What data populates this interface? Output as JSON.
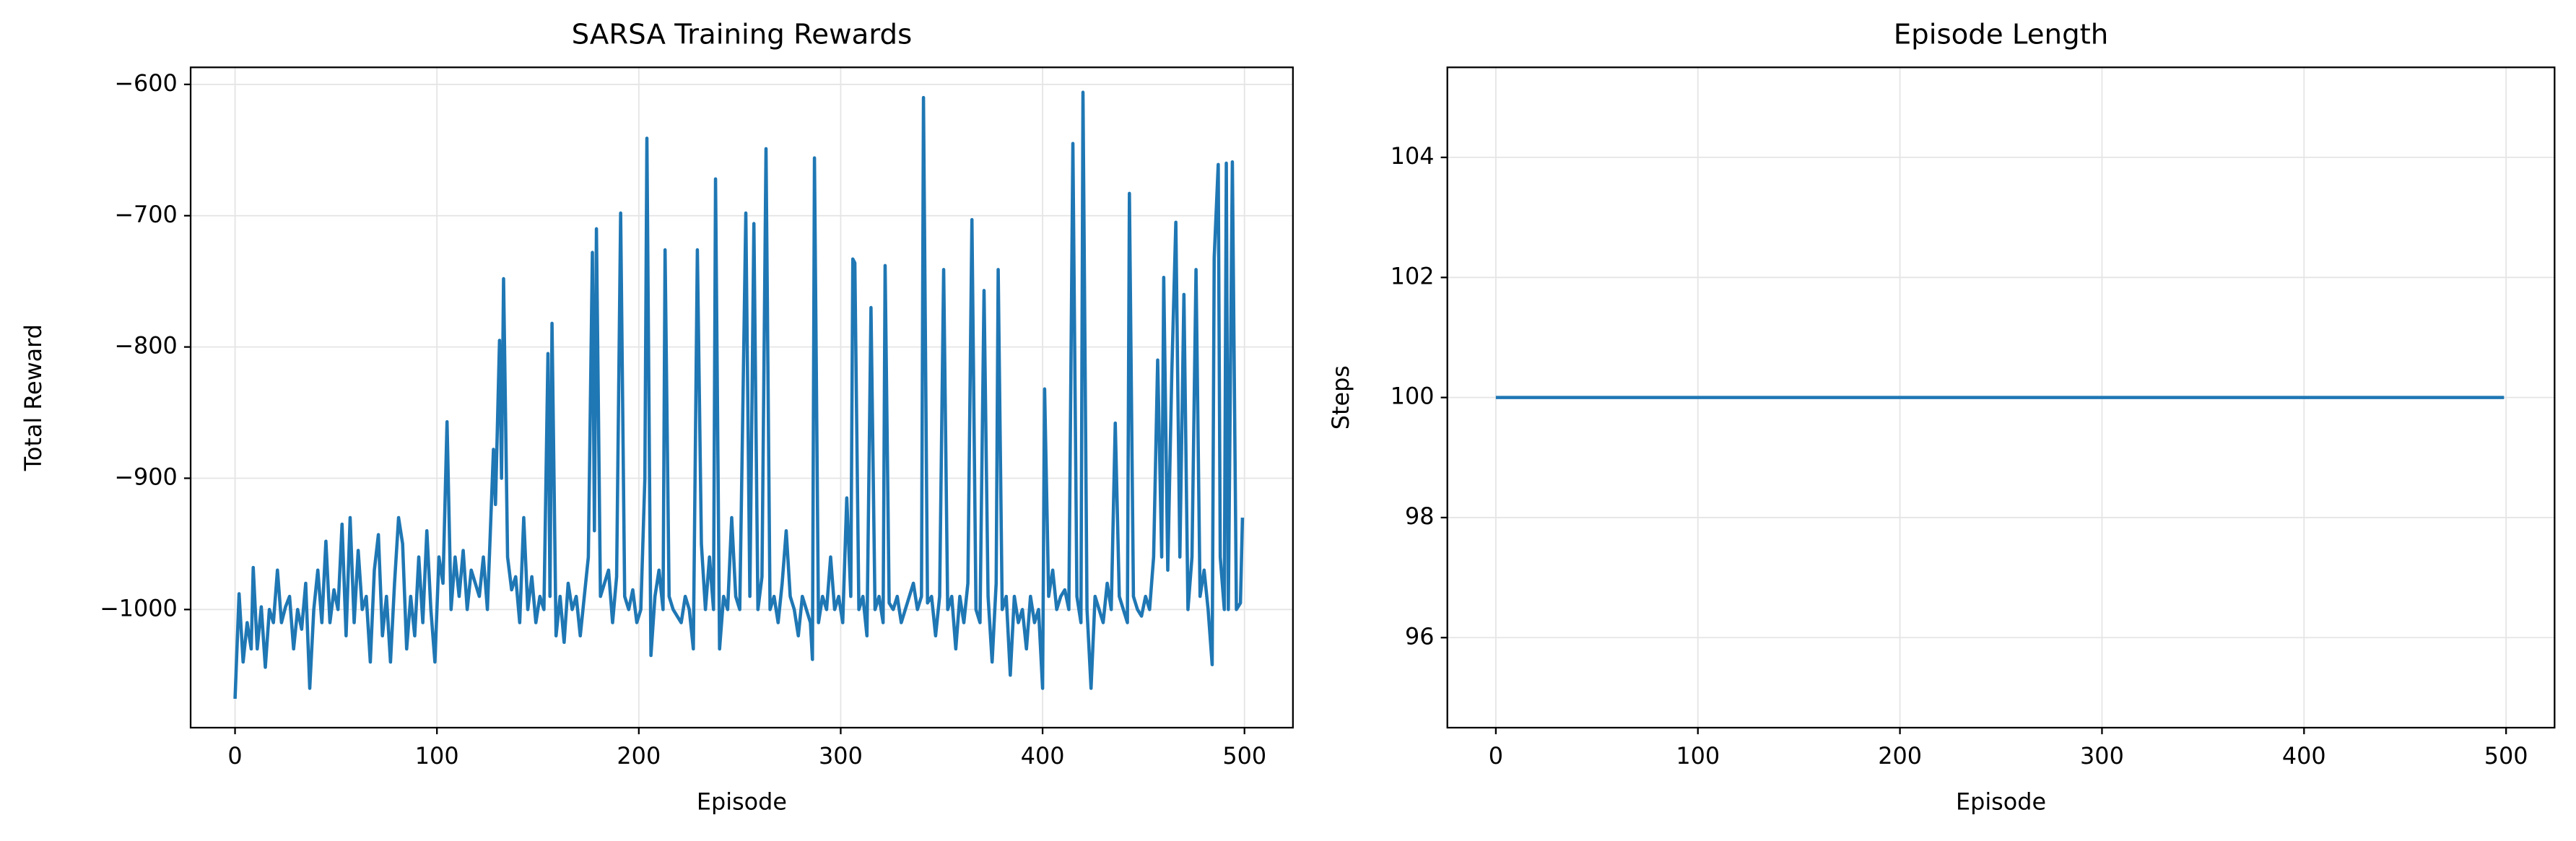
{
  "chart_data": [
    {
      "type": "line",
      "title": "SARSA Training Rewards",
      "xlabel": "Episode",
      "ylabel": "Total Reward",
      "grid": true,
      "xlim": [
        -22,
        524
      ],
      "ylim": [
        -1090,
        -587
      ],
      "xticks": [
        0,
        100,
        200,
        300,
        400,
        500
      ],
      "yticks": [
        {
          "value": -1000,
          "label": "−1000"
        },
        {
          "value": -900,
          "label": "−900"
        },
        {
          "value": -800,
          "label": "−800"
        },
        {
          "value": -700,
          "label": "−700"
        },
        {
          "value": -600,
          "label": "−600"
        }
      ],
      "series": [
        {
          "color": "#1f77b4",
          "x": [
            0,
            2,
            4,
            6,
            8,
            9,
            11,
            13,
            15,
            17,
            19,
            21,
            23,
            25,
            27,
            29,
            31,
            33,
            35,
            37,
            39,
            41,
            43,
            45,
            47,
            49,
            51,
            53,
            55,
            57,
            59,
            61,
            63,
            65,
            67,
            69,
            71,
            73,
            75,
            77,
            79,
            81,
            83,
            85,
            87,
            89,
            91,
            93,
            95,
            97,
            99,
            101,
            103,
            105,
            107,
            109,
            111,
            113,
            115,
            117,
            119,
            121,
            123,
            125,
            128,
            129,
            131,
            132,
            133,
            135,
            137,
            139,
            141,
            143,
            145,
            147,
            149,
            151,
            153,
            155,
            156,
            157,
            159,
            161,
            163,
            165,
            167,
            169,
            171,
            173,
            175,
            177,
            178,
            179,
            181,
            183,
            185,
            187,
            189,
            191,
            193,
            195,
            197,
            199,
            201,
            203,
            204,
            206,
            208,
            210,
            212,
            213,
            215,
            217,
            219,
            221,
            223,
            225,
            227,
            229,
            231,
            233,
            235,
            237,
            238,
            240,
            242,
            244,
            246,
            248,
            250,
            253,
            255,
            257,
            259,
            261,
            263,
            265,
            267,
            269,
            271,
            273,
            275,
            277,
            279,
            281,
            283,
            285,
            286,
            287,
            289,
            291,
            293,
            295,
            297,
            299,
            301,
            303,
            305,
            306,
            307,
            309,
            311,
            313,
            315,
            317,
            319,
            321,
            322,
            324,
            326,
            328,
            330,
            332,
            334,
            336,
            338,
            340,
            341,
            343,
            345,
            347,
            349,
            351,
            353,
            355,
            357,
            359,
            361,
            363,
            365,
            367,
            369,
            371,
            373,
            375,
            377,
            378,
            380,
            382,
            384,
            386,
            388,
            390,
            392,
            394,
            396,
            398,
            400,
            401,
            403,
            405,
            407,
            409,
            411,
            413,
            415,
            417,
            419,
            420,
            422,
            424,
            426,
            428,
            430,
            432,
            434,
            436,
            438,
            440,
            442,
            443,
            445,
            447,
            449,
            451,
            453,
            455,
            457,
            459,
            460,
            462,
            464,
            466,
            468,
            470,
            472,
            474,
            476,
            478,
            480,
            482,
            484,
            485,
            487,
            488,
            490,
            491,
            492,
            494,
            496,
            498,
            499
          ],
          "values": [
            -1068,
            -988,
            -1040,
            -1010,
            -1030,
            -968,
            -1030,
            -998,
            -1044,
            -1000,
            -1010,
            -970,
            -1010,
            -998,
            -990,
            -1030,
            -1000,
            -1015,
            -980,
            -1060,
            -1000,
            -970,
            -1010,
            -948,
            -1010,
            -985,
            -1000,
            -935,
            -1020,
            -930,
            -1010,
            -955,
            -1000,
            -990,
            -1040,
            -970,
            -943,
            -1020,
            -990,
            -1040,
            -980,
            -930,
            -950,
            -1030,
            -990,
            -1020,
            -960,
            -1010,
            -940,
            -1000,
            -1040,
            -960,
            -980,
            -857,
            -1000,
            -960,
            -990,
            -955,
            -1000,
            -970,
            -980,
            -990,
            -960,
            -1000,
            -878,
            -920,
            -795,
            -900,
            -748,
            -960,
            -985,
            -975,
            -1010,
            -930,
            -1000,
            -975,
            -1010,
            -990,
            -1000,
            -805,
            -990,
            -782,
            -1020,
            -990,
            -1025,
            -980,
            -1000,
            -990,
            -1020,
            -990,
            -960,
            -728,
            -940,
            -710,
            -990,
            -980,
            -970,
            -1010,
            -975,
            -698,
            -990,
            -1000,
            -985,
            -1010,
            -1000,
            -900,
            -641,
            -1035,
            -990,
            -970,
            -1000,
            -726,
            -990,
            -1000,
            -1005,
            -1010,
            -990,
            -1000,
            -1030,
            -726,
            -950,
            -1000,
            -960,
            -1000,
            -672,
            -1030,
            -990,
            -1000,
            -930,
            -990,
            -1000,
            -698,
            -990,
            -706,
            -1000,
            -975,
            -649,
            -1000,
            -990,
            -1010,
            -980,
            -940,
            -990,
            -1000,
            -1020,
            -990,
            -1000,
            -1010,
            -1038,
            -656,
            -1010,
            -990,
            -1000,
            -960,
            -1000,
            -990,
            -1010,
            -915,
            -990,
            -733,
            -736,
            -1000,
            -990,
            -1020,
            -770,
            -1000,
            -990,
            -1010,
            -738,
            -995,
            -1000,
            -990,
            -1010,
            -1000,
            -990,
            -980,
            -1000,
            -990,
            -610,
            -995,
            -990,
            -1020,
            -990,
            -741,
            -1000,
            -990,
            -1030,
            -990,
            -1010,
            -980,
            -703,
            -1000,
            -1010,
            -757,
            -990,
            -1040,
            -980,
            -741,
            -1000,
            -990,
            -1050,
            -990,
            -1010,
            -1000,
            -1030,
            -990,
            -1010,
            -1000,
            -1060,
            -832,
            -990,
            -970,
            -1000,
            -990,
            -985,
            -1000,
            -645,
            -990,
            -1010,
            -606,
            -1000,
            -1060,
            -990,
            -1000,
            -1010,
            -980,
            -1000,
            -858,
            -990,
            -1000,
            -1010,
            -683,
            -990,
            -1000,
            -1005,
            -990,
            -1000,
            -960,
            -810,
            -960,
            -747,
            -970,
            -820,
            -705,
            -960,
            -760,
            -1000,
            -960,
            -741,
            -990,
            -970,
            -1000,
            -1042,
            -732,
            -661,
            -960,
            -1000,
            -660,
            -1000,
            -659,
            -1000,
            -995,
            -930
          ]
        }
      ]
    },
    {
      "type": "line",
      "title": "Episode Length",
      "xlabel": "Episode",
      "ylabel": "Steps",
      "grid": true,
      "xlim": [
        -24,
        524
      ],
      "ylim": [
        94.5,
        105.5
      ],
      "xticks": [
        0,
        100,
        200,
        300,
        400,
        500
      ],
      "yticks": [
        96,
        98,
        100,
        102,
        104
      ],
      "series": [
        {
          "color": "#1f77b4",
          "x": [
            0,
            499
          ],
          "values": [
            100,
            100
          ]
        }
      ]
    }
  ]
}
